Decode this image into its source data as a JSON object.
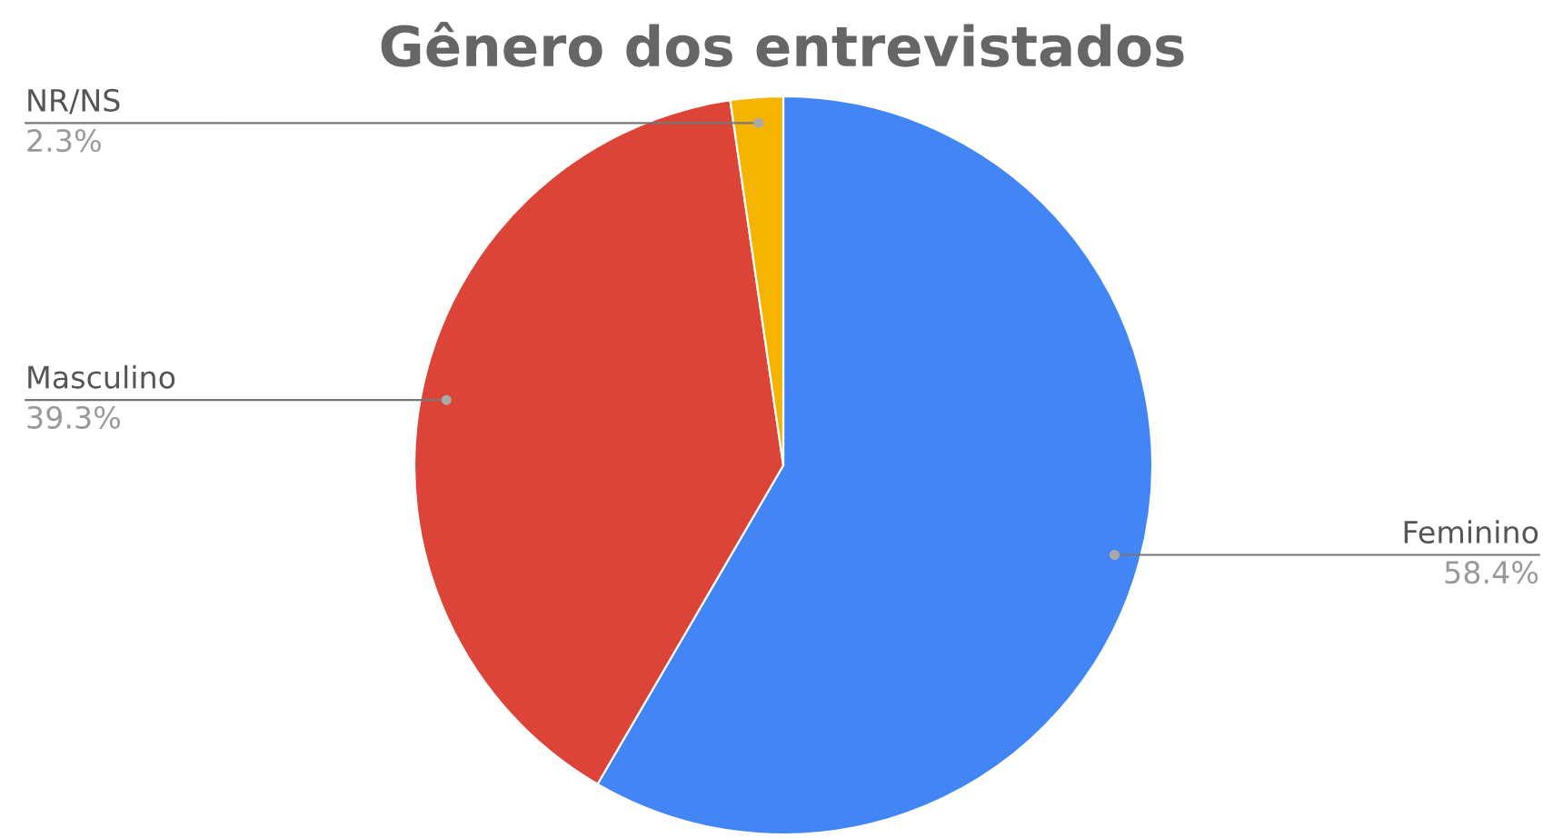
{
  "chart_data": {
    "type": "pie",
    "title": "Gênero dos entrevistados",
    "categories": [
      "Feminino",
      "Masculino",
      "NR/NS"
    ],
    "values": [
      58.4,
      39.3,
      2.3
    ],
    "value_labels": [
      "58.4%",
      "39.3%",
      "2.3%"
    ],
    "colors": [
      "#4285f4",
      "#db4437",
      "#f4b400"
    ],
    "legend": false
  }
}
